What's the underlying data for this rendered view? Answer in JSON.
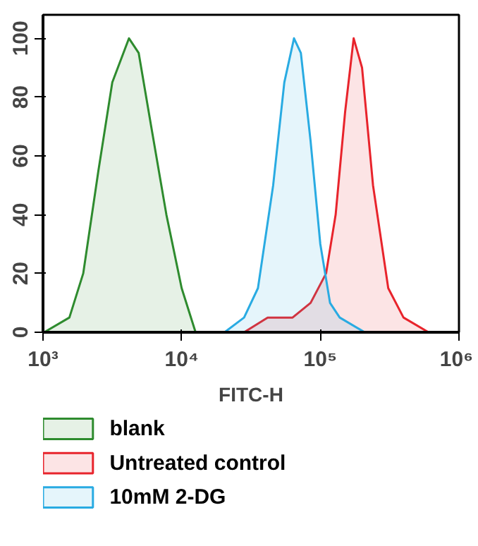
{
  "chart_data": {
    "type": "area",
    "xlabel": "FITC-H",
    "log": "x",
    "xlim": [
      1000,
      1000000
    ],
    "xticks": [
      {
        "value": 1000,
        "label": "10³"
      },
      {
        "value": 10000,
        "label": "10⁴"
      },
      {
        "value": 100000,
        "label": "10⁵"
      },
      {
        "value": 1000000,
        "label": "10⁶"
      }
    ],
    "ylim": [
      0,
      108
    ],
    "yticks": [
      0,
      20,
      40,
      60,
      80,
      100
    ],
    "grid": false,
    "legend": "bottom",
    "series": [
      {
        "name": "blank",
        "color": "#2e8b2e",
        "x": [
          1020,
          1550,
          1950,
          2510,
          3160,
          4170,
          4900,
          6030,
          7760,
          10000,
          12600,
          15500
        ],
        "values": [
          0,
          5,
          20,
          55,
          85,
          100,
          95,
          70,
          40,
          15,
          0,
          0
        ]
      },
      {
        "name": "Untreated control",
        "color": "#e8242c",
        "x": [
          28200,
          41700,
          63100,
          85100,
          110000,
          129000,
          151000,
          174000,
          200000,
          240000,
          309000,
          398000,
          603000
        ],
        "values": [
          0,
          5,
          5,
          10,
          20,
          40,
          75,
          100,
          90,
          50,
          15,
          5,
          0
        ]
      },
      {
        "name": "10mM 2-DG",
        "color": "#29abe2",
        "x": [
          20400,
          28200,
          35500,
          45700,
          55000,
          64600,
          72400,
          85100,
          100000,
          117500,
          138000,
          209000,
          316000
        ],
        "values": [
          0,
          5,
          15,
          50,
          85,
          100,
          95,
          65,
          30,
          10,
          5,
          0,
          0
        ]
      }
    ]
  }
}
